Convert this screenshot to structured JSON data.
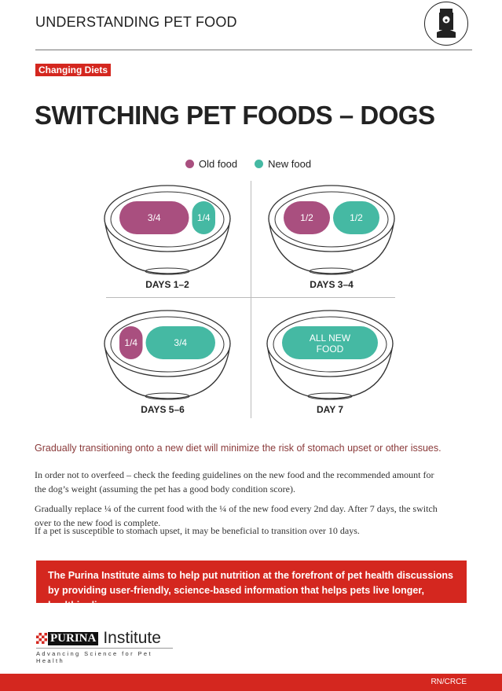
{
  "header": {
    "title": "UNDERSTANDING PET FOOD",
    "icon": "pet-food-bag-icon"
  },
  "tag": "Changing Diets",
  "title": "SWITCHING PET FOODS – DOGS",
  "colors": {
    "old_food": "#a94f7f",
    "new_food": "#45b9a3",
    "accent": "#d4271f"
  },
  "legend": [
    {
      "label": "Old food"
    },
    {
      "label": "New food"
    }
  ],
  "bowls": [
    {
      "day": "DAYS 1–2",
      "old_fraction": 0.75,
      "new_fraction": 0.25,
      "old_label": "3/4",
      "new_label": "1/4"
    },
    {
      "day": "DAYS 3–4",
      "old_fraction": 0.5,
      "new_fraction": 0.5,
      "old_label": "1/2",
      "new_label": "1/2"
    },
    {
      "day": "DAYS 5–6",
      "old_fraction": 0.25,
      "new_fraction": 0.75,
      "old_label": "1/4",
      "new_label": "3/4"
    },
    {
      "day": "DAY 7",
      "old_fraction": 0,
      "new_fraction": 1,
      "new_label_line1": "ALL NEW",
      "new_label_line2": "FOOD"
    }
  ],
  "lead": "Gradually transitioning onto a new diet will minimize the risk of stomach upset or other issues.",
  "paragraphs": [
    "In order not to overfeed – check the feeding guidelines on the new food and the recommended amount for the dog’s weight (assuming the pet has a good body condition score).",
    "Gradually replace ¼ of the current food with the ¼ of the new food every 2nd day. After 7 days, the switch over to the new food is complete.",
    "If a pet is susceptible to stomach upset, it may be beneficial to transition over 10 days."
  ],
  "banner": "The Purina Institute aims to help put nutrition at the forefront of pet health discussions by providing user-friendly, science-based information that helps pets live longer, healthier lives.",
  "brand": {
    "purina": "PURINA",
    "institute": "Institute",
    "tagline": "Advancing Science for Pet Health"
  },
  "footer_code": "RN/CRCE"
}
